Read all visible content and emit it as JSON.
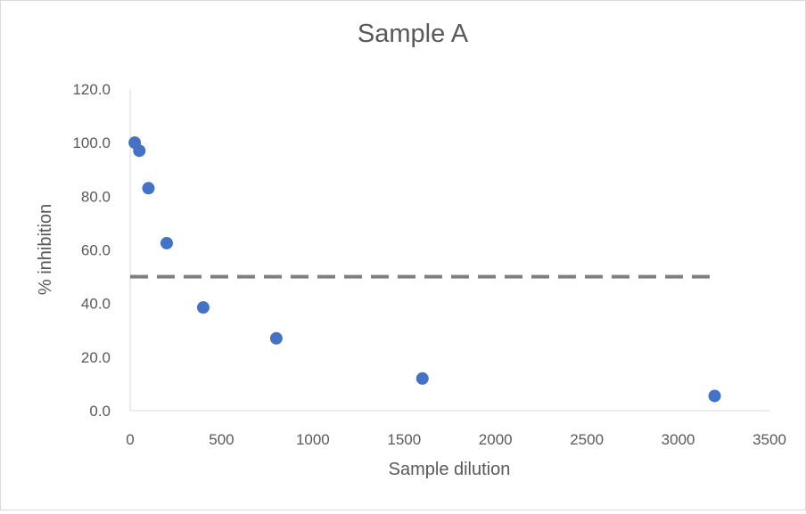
{
  "chart_data": {
    "type": "scatter",
    "title": "Sample A",
    "xlabel": "Sample dilution",
    "ylabel": "% inhibition",
    "xlim": [
      0,
      3500
    ],
    "ylim": [
      0,
      120
    ],
    "xticks": [
      "0",
      "500",
      "1000",
      "1500",
      "2000",
      "2500",
      "3000",
      "3500"
    ],
    "yticks": [
      "0.0",
      "20.0",
      "40.0",
      "60.0",
      "80.0",
      "100.0",
      "120.0"
    ],
    "grid": false,
    "legend": "none",
    "series": [
      {
        "color": "#4472C4",
        "points": [
          {
            "x": 25,
            "y": 100.0
          },
          {
            "x": 50,
            "y": 97.0
          },
          {
            "x": 100,
            "y": 83.0
          },
          {
            "x": 200,
            "y": 62.5
          },
          {
            "x": 400,
            "y": 38.5
          },
          {
            "x": 800,
            "y": 27.0
          },
          {
            "x": 1600,
            "y": 12.0
          },
          {
            "x": 3200,
            "y": 5.5
          }
        ]
      }
    ],
    "reference_line": {
      "y": 50,
      "x_start": 0,
      "x_end": 3200,
      "style": "dashed",
      "color": "#7F7F7F"
    }
  }
}
